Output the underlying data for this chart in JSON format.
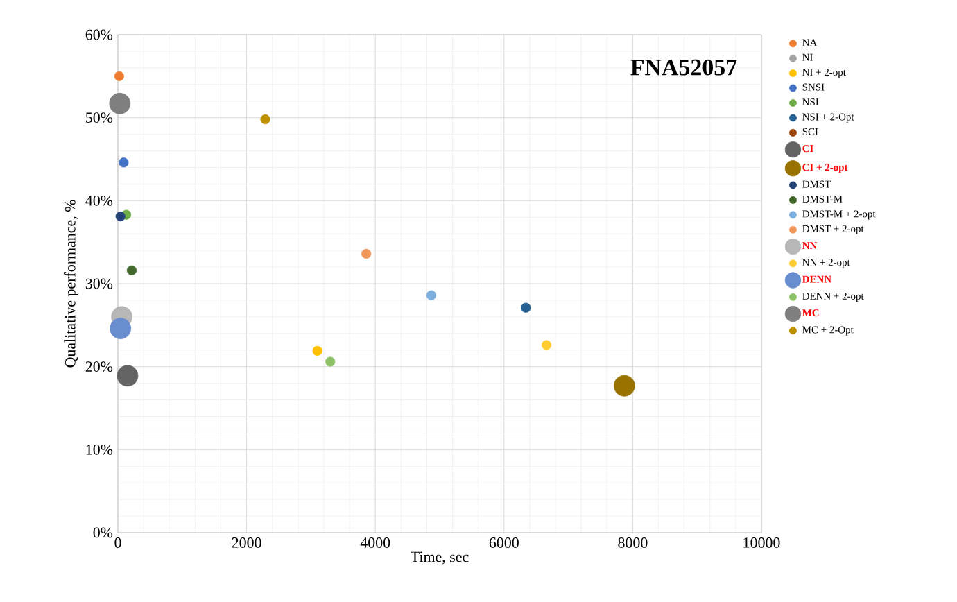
{
  "chart_data": {
    "type": "bubble",
    "title": "FNA52057",
    "xlabel": "Time, sec",
    "ylabel": "Qualitative performance, %",
    "xlim": [
      0,
      10000
    ],
    "xticks": [
      0,
      2000,
      4000,
      6000,
      8000,
      10000
    ],
    "ylim": [
      0,
      60
    ],
    "yticks": [
      {
        "value": 0,
        "label": "0%"
      },
      {
        "value": 10,
        "label": "10%"
      },
      {
        "value": 20,
        "label": "20%"
      },
      {
        "value": 30,
        "label": "30%"
      },
      {
        "value": 40,
        "label": "40%"
      },
      {
        "value": 50,
        "label": "50%"
      },
      {
        "value": 60,
        "label": "60%"
      }
    ],
    "grid": true,
    "legend": "right",
    "series": [
      {
        "name": "NA",
        "color": "#ed7d31",
        "x": [
          20
        ],
        "values": [
          55.0
        ],
        "sizes": [
          0.2
        ]
      },
      {
        "name": "NI",
        "color": "#a5a5a5",
        "x": [
          null
        ],
        "values": [
          null
        ],
        "sizes": [
          null
        ]
      },
      {
        "name": "NI + 2-opt",
        "color": "#ffc000",
        "x": [
          3100
        ],
        "values": [
          21.9
        ],
        "sizes": [
          0.2
        ]
      },
      {
        "name": "SNSI",
        "color": "#4472c4",
        "x": [
          90
        ],
        "values": [
          44.6
        ],
        "sizes": [
          0.2
        ]
      },
      {
        "name": "NSI",
        "color": "#70ad47",
        "x": [
          130
        ],
        "values": [
          38.3
        ],
        "sizes": [
          0.2
        ]
      },
      {
        "name": "NSI + 2-Opt",
        "color": "#255e91",
        "x": [
          6340
        ],
        "values": [
          27.1
        ],
        "sizes": [
          0.2
        ]
      },
      {
        "name": "SCI",
        "color": "#9e480e",
        "x": [
          null
        ],
        "values": [
          null
        ],
        "sizes": [
          null
        ]
      },
      {
        "name": "CI",
        "color": "#636363",
        "x": [
          150
        ],
        "values": [
          18.9
        ],
        "sizes": [
          1
        ]
      },
      {
        "name": "CI + 2-opt",
        "color": "#997300",
        "x": [
          7870
        ],
        "values": [
          17.7
        ],
        "sizes": [
          1
        ]
      },
      {
        "name": "DMST",
        "color": "#264478",
        "x": [
          40
        ],
        "values": [
          38.1
        ],
        "sizes": [
          0.2
        ]
      },
      {
        "name": "DMST-M",
        "color": "#43682b",
        "x": [
          215
        ],
        "values": [
          31.6
        ],
        "sizes": [
          0.2
        ]
      },
      {
        "name": "DMST-M + 2-opt",
        "color": "#7cafdd",
        "x": [
          4870
        ],
        "values": [
          28.6
        ],
        "sizes": [
          0.2
        ]
      },
      {
        "name": "DMST + 2-opt",
        "color": "#f1975a",
        "x": [
          3860
        ],
        "values": [
          33.6
        ],
        "sizes": [
          0.2
        ]
      },
      {
        "name": "NN",
        "color": "#b7b7b7",
        "x": [
          60
        ],
        "values": [
          26.0
        ],
        "sizes": [
          1
        ]
      },
      {
        "name": "NN + 2-opt",
        "color": "#ffcd33",
        "x": [
          6660
        ],
        "values": [
          22.6
        ],
        "sizes": [
          0.2
        ]
      },
      {
        "name": "DENN",
        "color": "#698ed0",
        "x": [
          40
        ],
        "values": [
          24.6
        ],
        "sizes": [
          1
        ]
      },
      {
        "name": "DENN + 2-opt",
        "color": "#8cc168",
        "x": [
          3300
        ],
        "values": [
          20.6
        ],
        "sizes": [
          0.2
        ]
      },
      {
        "name": "MC",
        "color": "#7f7f7f",
        "x": [
          30
        ],
        "values": [
          51.7
        ],
        "sizes": [
          1
        ]
      },
      {
        "name": "MC + 2-Opt",
        "color": "#bf9000",
        "x": [
          2290
        ],
        "values": [
          49.8
        ],
        "sizes": [
          0.2
        ]
      }
    ]
  }
}
